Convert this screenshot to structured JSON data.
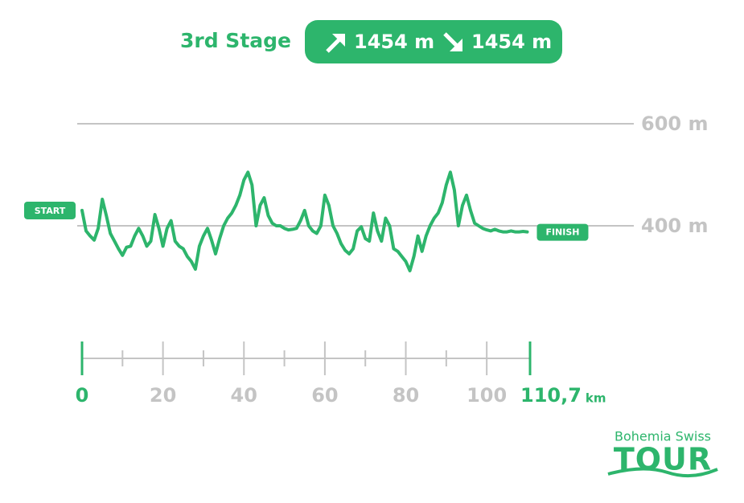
{
  "header": {
    "title": "3rd Stage",
    "ascent": "1454 m",
    "descent": "1454 m"
  },
  "chart_data": {
    "type": "line",
    "start_label": "START",
    "finish_label": "FINISH",
    "x": [
      0,
      1,
      2,
      3,
      4,
      5,
      6,
      7,
      8,
      9,
      10,
      11,
      12,
      13,
      14,
      15,
      16,
      17,
      18,
      19,
      20,
      21,
      22,
      23,
      24,
      25,
      26,
      27,
      28,
      29,
      30,
      31,
      32,
      33,
      34,
      35,
      36,
      37,
      38,
      39,
      40,
      41,
      42,
      43,
      44,
      45,
      46,
      47,
      48,
      49,
      50,
      51,
      52,
      53,
      54,
      55,
      56,
      57,
      58,
      59,
      60,
      61,
      62,
      63,
      64,
      65,
      66,
      67,
      68,
      69,
      70,
      71,
      72,
      73,
      74,
      75,
      76,
      77,
      78,
      79,
      80,
      81,
      82,
      83,
      84,
      85,
      86,
      87,
      88,
      89,
      90,
      91,
      92,
      93,
      94,
      95,
      96,
      97,
      98,
      99,
      100,
      101,
      102,
      103,
      104,
      105,
      106,
      107,
      108,
      109,
      110
    ],
    "series": [
      {
        "color": "#2db56c",
        "values": [
          430,
          390,
          380,
          372,
          395,
          452,
          420,
          385,
          370,
          355,
          342,
          358,
          360,
          380,
          395,
          380,
          360,
          370,
          422,
          395,
          360,
          395,
          410,
          370,
          360,
          355,
          340,
          330,
          315,
          360,
          380,
          395,
          372,
          345,
          375,
          400,
          415,
          425,
          440,
          460,
          490,
          505,
          480,
          400,
          440,
          455,
          420,
          405,
          400,
          400,
          395,
          392,
          393,
          395,
          410,
          430,
          400,
          390,
          385,
          400,
          460,
          440,
          400,
          385,
          365,
          352,
          345,
          355,
          390,
          398,
          375,
          370,
          425,
          390,
          370,
          415,
          400,
          355,
          350,
          340,
          330,
          312,
          340,
          380,
          350,
          380,
          400,
          415,
          425,
          445,
          480,
          505,
          470,
          400,
          440,
          460,
          430,
          405,
          400,
          395,
          392,
          390,
          393,
          390,
          388,
          388,
          390,
          388,
          388,
          389,
          388
        ]
      }
    ],
    "ylim": [
      200,
      700
    ],
    "yticks": [
      {
        "value": 400,
        "label": "400 m"
      },
      {
        "value": 600,
        "label": "600 m"
      }
    ],
    "xlim": [
      0,
      110.7
    ],
    "xticks": [
      0,
      20,
      40,
      60,
      80,
      100,
      {
        "value": 110.7,
        "label": "110,7"
      }
    ],
    "xminorticks": [
      10,
      30,
      50,
      70,
      90
    ],
    "xunit": "km",
    "grid": true
  },
  "logo": {
    "line1": "Bohemia Swiss",
    "line2": "TOUR"
  }
}
